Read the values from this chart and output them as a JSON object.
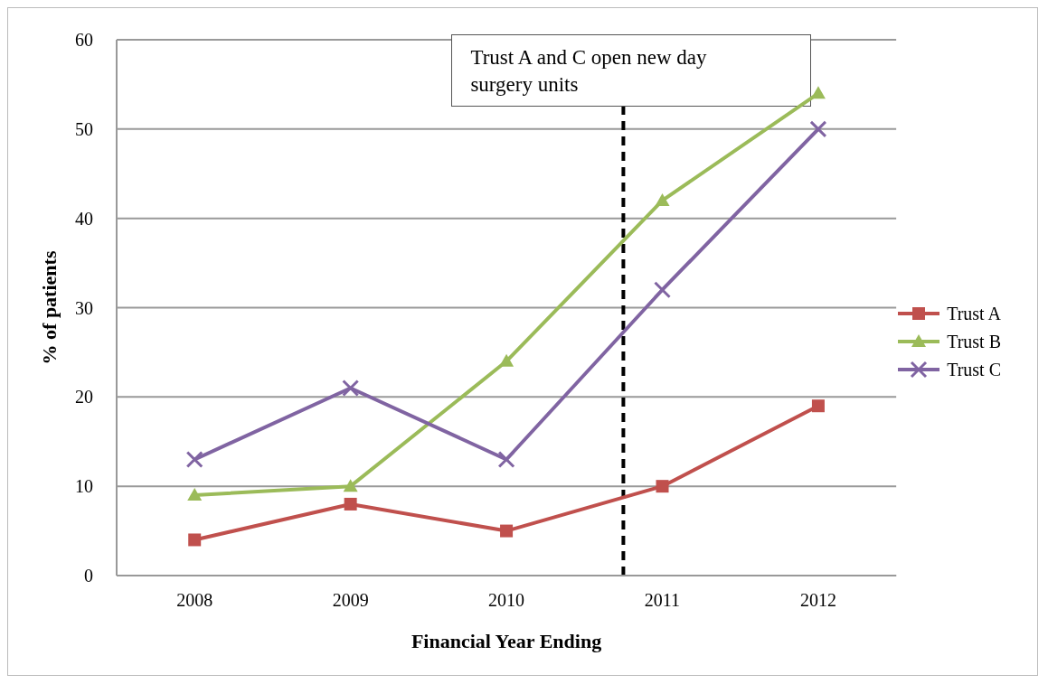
{
  "chart_data": {
    "type": "line",
    "xlabel": "Financial Year Ending",
    "ylabel": "% of patients",
    "x": [
      2008,
      2009,
      2010,
      2011,
      2012
    ],
    "xlim": [
      2007.5,
      2012.5
    ],
    "xticks": [
      2008,
      2009,
      2010,
      2011,
      2012
    ],
    "ylim": [
      0,
      60
    ],
    "yticks": [
      0,
      10,
      20,
      30,
      40,
      50,
      60
    ],
    "grid": "y",
    "legend": "right",
    "series": [
      {
        "name": "Trust A",
        "color": "#c0504d",
        "marker": "square",
        "values": [
          4,
          8,
          5,
          10,
          19
        ]
      },
      {
        "name": "Trust B",
        "color": "#9bbb59",
        "marker": "triangle",
        "values": [
          9,
          10,
          24,
          42,
          54
        ]
      },
      {
        "name": "Trust C",
        "color": "#8064a2",
        "marker": "cross",
        "values": [
          13,
          21,
          13,
          32,
          50
        ]
      }
    ],
    "ref_lines": [
      {
        "axis": "x",
        "value": 2010.75,
        "label": "Trust A and C open new day surgery units",
        "color": "#000000",
        "line_style": "dashed"
      }
    ]
  }
}
